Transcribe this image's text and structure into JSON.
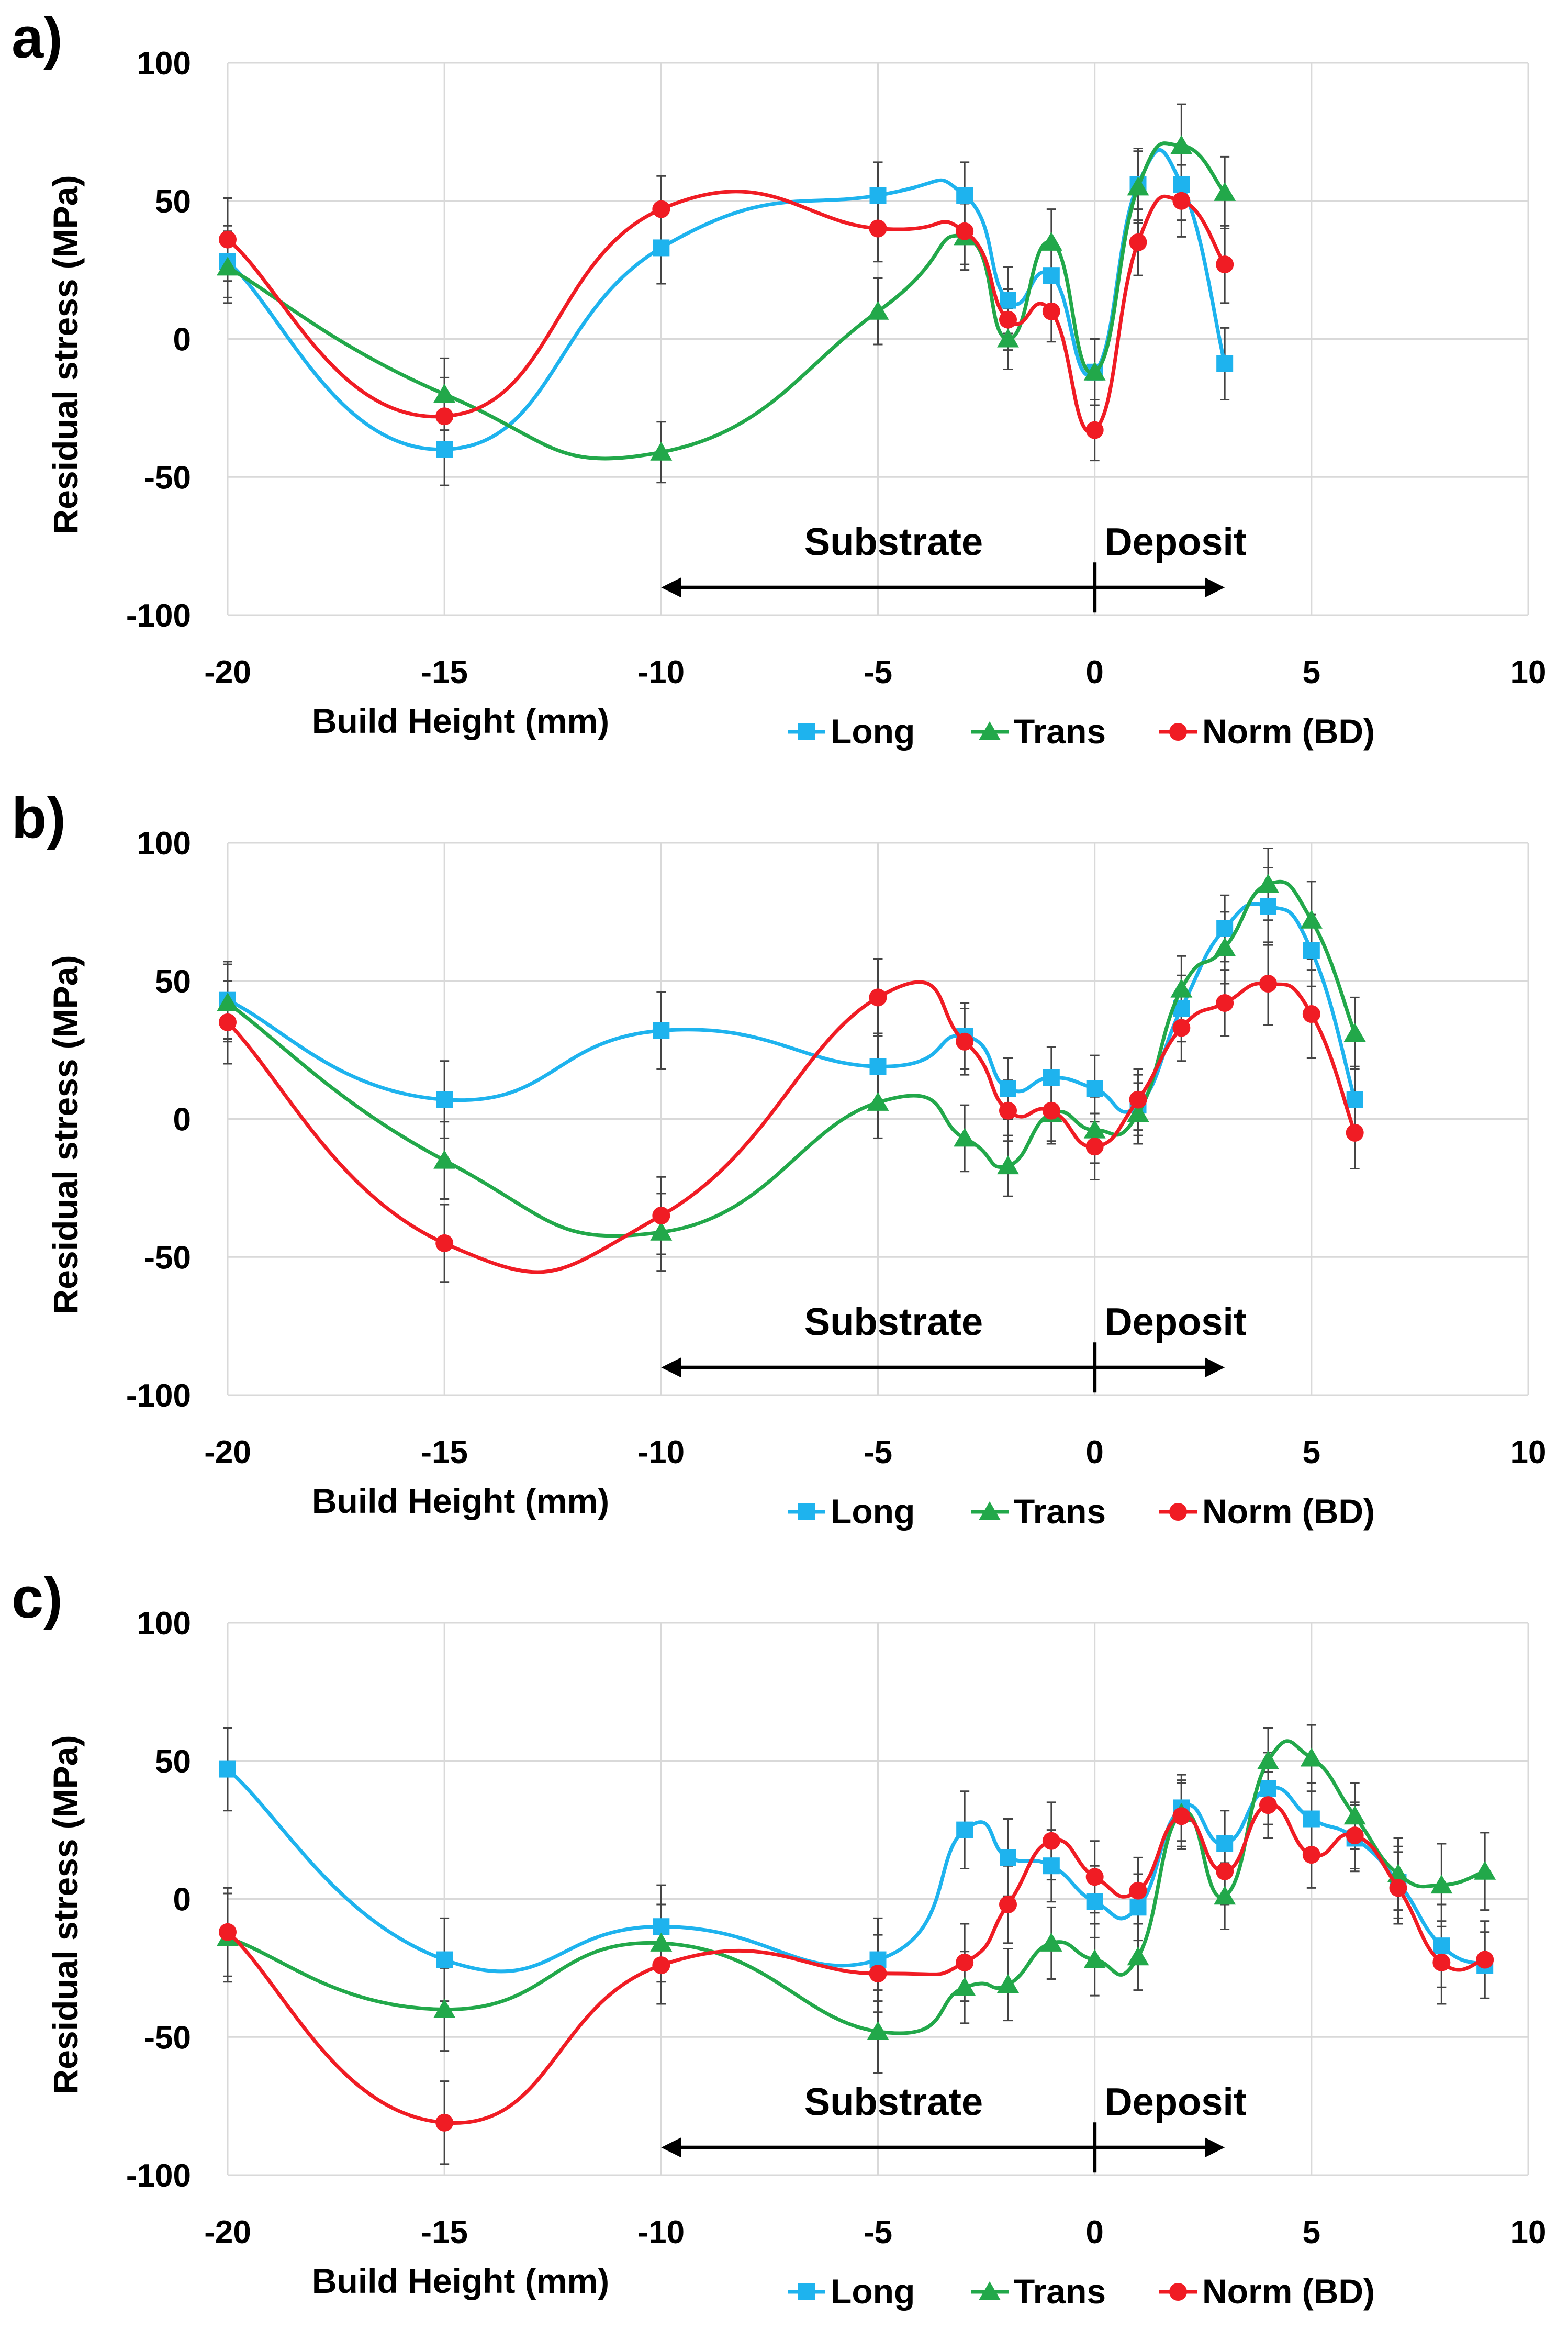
{
  "chart_data": [
    {
      "panel_label": "a)",
      "type": "line",
      "xlabel": "Build Height (mm)",
      "ylabel": "Residual stress (MPa)",
      "xlim": [
        -20,
        10
      ],
      "ylim": [
        -100,
        100
      ],
      "x_ticks": [
        -20,
        -15,
        -10,
        -5,
        0,
        5,
        10
      ],
      "y_ticks": [
        -100,
        -50,
        0,
        50,
        100
      ],
      "annotations": {
        "substrate": {
          "label": "Substrate",
          "x_range": [
            -10,
            0
          ]
        },
        "deposit": {
          "label": "Deposit",
          "x_range": [
            0,
            3
          ]
        }
      },
      "legend_position": "bottom",
      "series": [
        {
          "name": "Long",
          "color": "#1eb3ee",
          "marker": "square",
          "x": [
            -20,
            -15,
            -10,
            -5,
            -3,
            -2,
            -1,
            0,
            1,
            2,
            3
          ],
          "y": [
            28,
            -40,
            33,
            52,
            52,
            14,
            23,
            -12,
            56,
            56,
            -9
          ],
          "err": [
            13,
            13,
            13,
            12,
            12,
            12,
            12,
            12,
            13,
            13,
            13
          ]
        },
        {
          "name": "Trans",
          "color": "#22a84a",
          "marker": "triangle",
          "x": [
            -20,
            -15,
            -10,
            -5,
            -3,
            -2,
            -1,
            0,
            1,
            2,
            3
          ],
          "y": [
            26,
            -20,
            -41,
            10,
            37,
            0,
            35,
            -12,
            55,
            70,
            53
          ],
          "err": [
            13,
            13,
            11,
            12,
            12,
            11,
            12,
            12,
            13,
            15,
            13
          ]
        },
        {
          "name": "Norm (BD)",
          "color": "#f01c24",
          "marker": "circle",
          "x": [
            -20,
            -15,
            -10,
            -5,
            -3,
            -2,
            -1,
            0,
            1,
            2,
            3
          ],
          "y": [
            36,
            -28,
            47,
            40,
            39,
            7,
            10,
            -33,
            35,
            50,
            27
          ],
          "err": [
            15,
            14,
            12,
            12,
            12,
            11,
            11,
            11,
            12,
            13,
            14
          ]
        }
      ]
    },
    {
      "panel_label": "b)",
      "type": "line",
      "xlabel": "Build Height (mm)",
      "ylabel": "Residual stress (MPa)",
      "xlim": [
        -20,
        10
      ],
      "ylim": [
        -100,
        100
      ],
      "x_ticks": [
        -20,
        -15,
        -10,
        -5,
        0,
        5,
        10
      ],
      "y_ticks": [
        -100,
        -50,
        0,
        50,
        100
      ],
      "annotations": {
        "substrate": {
          "label": "Substrate",
          "x_range": [
            -10,
            0
          ]
        },
        "deposit": {
          "label": "Deposit",
          "x_range": [
            0,
            3
          ]
        }
      },
      "legend_position": "bottom",
      "series": [
        {
          "name": "Long",
          "color": "#1eb3ee",
          "marker": "square",
          "x": [
            -20,
            -15,
            -10,
            -5,
            -3,
            -2,
            -1,
            0,
            1,
            2,
            3,
            4,
            5,
            6
          ],
          "y": [
            43,
            7,
            32,
            19,
            30,
            11,
            15,
            11,
            5,
            40,
            69,
            77,
            61,
            7
          ],
          "err": [
            14,
            14,
            14,
            12,
            12,
            11,
            11,
            12,
            11,
            12,
            12,
            14,
            13,
            12
          ]
        },
        {
          "name": "Trans",
          "color": "#22a84a",
          "marker": "triangle",
          "x": [
            -20,
            -15,
            -10,
            -5,
            -3,
            -2,
            -1,
            0,
            1,
            2,
            3,
            4,
            5,
            6
          ],
          "y": [
            42,
            -15,
            -41,
            6,
            -7,
            -17,
            2,
            -4,
            2,
            47,
            62,
            85,
            72,
            31
          ],
          "err": [
            14,
            14,
            14,
            13,
            12,
            11,
            11,
            12,
            11,
            12,
            13,
            13,
            14,
            13
          ]
        },
        {
          "name": "Norm (BD)",
          "color": "#f01c24",
          "marker": "circle",
          "x": [
            -20,
            -15,
            -10,
            -5,
            -3,
            -2,
            -1,
            0,
            1,
            2,
            3,
            4,
            5,
            6
          ],
          "y": [
            35,
            -45,
            -35,
            44,
            28,
            3,
            3,
            -10,
            7,
            33,
            42,
            49,
            38,
            -5
          ],
          "err": [
            15,
            14,
            14,
            14,
            12,
            11,
            11,
            12,
            11,
            12,
            12,
            15,
            16,
            13
          ]
        }
      ]
    },
    {
      "panel_label": "c)",
      "type": "line",
      "xlabel": "Build Height (mm)",
      "ylabel": "Residual stress (MPa)",
      "xlim": [
        -20,
        10
      ],
      "ylim": [
        -100,
        100
      ],
      "x_ticks": [
        -20,
        -15,
        -10,
        -5,
        0,
        5,
        10
      ],
      "y_ticks": [
        -100,
        -50,
        0,
        50,
        100
      ],
      "annotations": {
        "substrate": {
          "label": "Substrate",
          "x_range": [
            -10,
            0
          ]
        },
        "deposit": {
          "label": "Deposit",
          "x_range": [
            0,
            3
          ]
        }
      },
      "legend_position": "bottom",
      "series": [
        {
          "name": "Long",
          "color": "#1eb3ee",
          "marker": "square",
          "x": [
            -20,
            -15,
            -10,
            -5,
            -3,
            -2,
            -1,
            0,
            1,
            2,
            3,
            4,
            5,
            6,
            7,
            8,
            9
          ],
          "y": [
            47,
            -22,
            -10,
            -22,
            25,
            15,
            12,
            -1,
            -3,
            33,
            20,
            40,
            29,
            22,
            6,
            -17,
            -24
          ],
          "err": [
            15,
            15,
            15,
            15,
            14,
            14,
            13,
            13,
            12,
            12,
            12,
            13,
            13,
            12,
            13,
            15,
            12
          ]
        },
        {
          "name": "Trans",
          "color": "#22a84a",
          "marker": "triangle",
          "x": [
            -20,
            -15,
            -10,
            -5,
            -3,
            -2,
            -1,
            0,
            1,
            2,
            3,
            4,
            5,
            6,
            7,
            8,
            9
          ],
          "y": [
            -14,
            -40,
            -16,
            -48,
            -32,
            -31,
            -16,
            -22,
            -21,
            31,
            1,
            50,
            51,
            30,
            9,
            5,
            10
          ],
          "err": [
            16,
            15,
            14,
            15,
            13,
            13,
            13,
            13,
            12,
            12,
            12,
            12,
            12,
            12,
            13,
            15,
            14
          ]
        },
        {
          "name": "Norm (BD)",
          "color": "#f01c24",
          "marker": "circle",
          "x": [
            -20,
            -15,
            -10,
            -5,
            -3,
            -2,
            -1,
            0,
            1,
            2,
            3,
            4,
            5,
            6,
            7,
            8,
            9
          ],
          "y": [
            -12,
            -81,
            -24,
            -27,
            -23,
            -2,
            21,
            8,
            3,
            30,
            10,
            34,
            16,
            23,
            4,
            -23,
            -22
          ],
          "err": [
            16,
            15,
            14,
            14,
            14,
            14,
            14,
            13,
            12,
            12,
            12,
            12,
            12,
            12,
            13,
            15,
            14
          ]
        }
      ]
    }
  ]
}
